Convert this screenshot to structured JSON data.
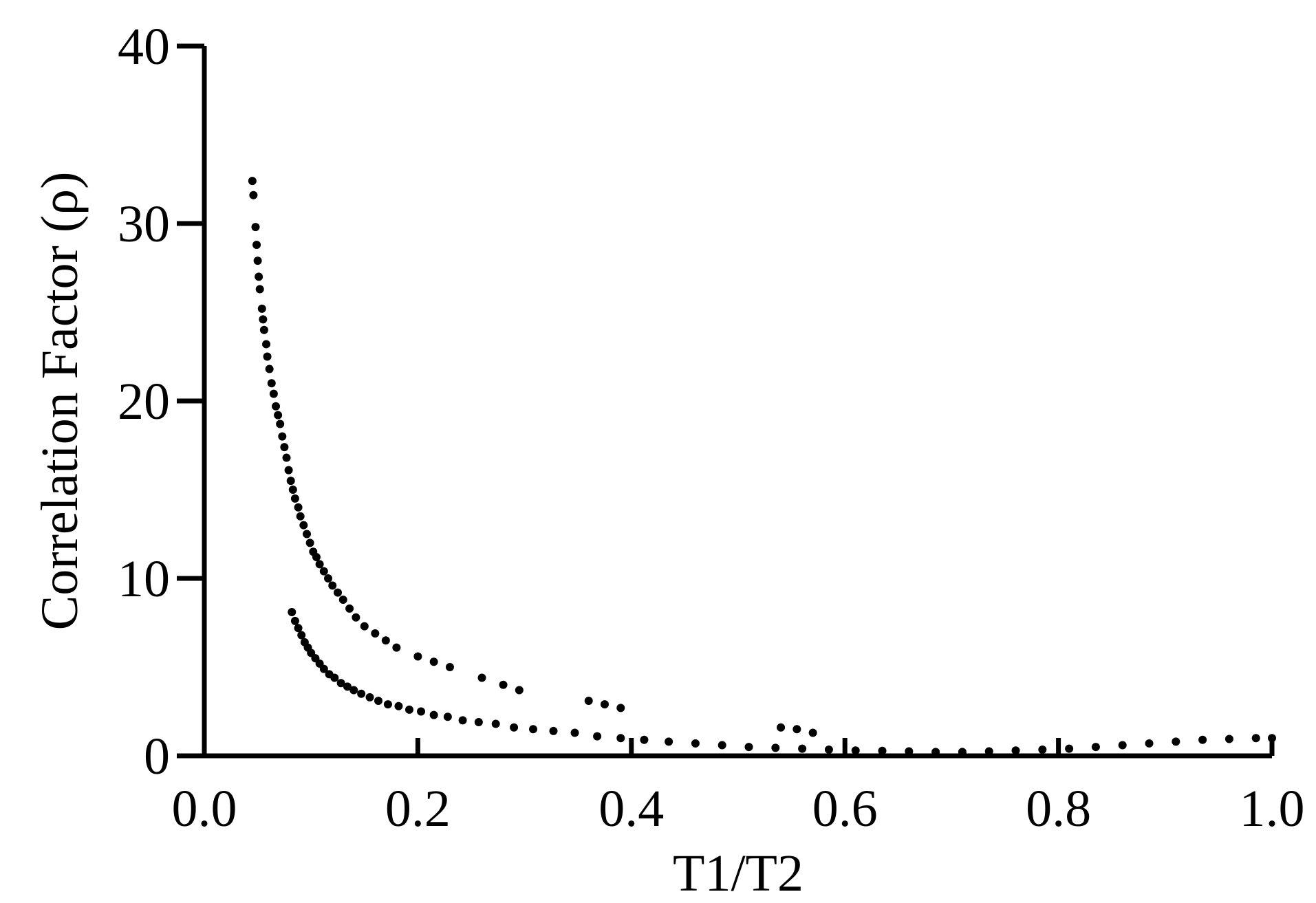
{
  "chart_data": {
    "type": "scatter",
    "title": "",
    "xlabel": "T1/T2",
    "ylabel": "Correlation Factor (ρ)",
    "xlim": [
      0.0,
      1.0
    ],
    "ylim": [
      0,
      40
    ],
    "x_ticks": [
      "0.0",
      "0.2",
      "0.4",
      "0.6",
      "0.8",
      "1.0"
    ],
    "y_ticks": [
      "0",
      "10",
      "20",
      "30",
      "40"
    ],
    "grid": false,
    "legend": "none",
    "marker_color": "#000000",
    "series": [
      {
        "values": [
          [
            0.045,
            32.4
          ],
          [
            0.046,
            31.6
          ],
          [
            0.048,
            29.8
          ],
          [
            0.049,
            28.8
          ],
          [
            0.05,
            27.9
          ],
          [
            0.051,
            27.0
          ],
          [
            0.052,
            26.3
          ],
          [
            0.054,
            25.2
          ],
          [
            0.055,
            24.6
          ],
          [
            0.056,
            24.0
          ],
          [
            0.058,
            23.2
          ],
          [
            0.059,
            22.5
          ],
          [
            0.061,
            21.8
          ],
          [
            0.063,
            21.0
          ],
          [
            0.065,
            20.4
          ],
          [
            0.067,
            19.7
          ],
          [
            0.069,
            19.2
          ],
          [
            0.071,
            18.7
          ],
          [
            0.073,
            18.0
          ],
          [
            0.075,
            17.4
          ],
          [
            0.077,
            16.8
          ],
          [
            0.079,
            16.1
          ],
          [
            0.081,
            15.5
          ],
          [
            0.083,
            15.0
          ],
          [
            0.085,
            14.5
          ],
          [
            0.088,
            14.0
          ],
          [
            0.09,
            13.5
          ],
          [
            0.093,
            13.0
          ],
          [
            0.096,
            12.5
          ],
          [
            0.099,
            12.0
          ],
          [
            0.102,
            11.5
          ],
          [
            0.105,
            11.2
          ],
          [
            0.108,
            10.8
          ],
          [
            0.112,
            10.4
          ],
          [
            0.116,
            10.0
          ],
          [
            0.12,
            9.6
          ],
          [
            0.125,
            9.2
          ],
          [
            0.13,
            8.8
          ],
          [
            0.136,
            8.3
          ],
          [
            0.142,
            7.8
          ],
          [
            0.15,
            7.3
          ],
          [
            0.16,
            6.9
          ],
          [
            0.17,
            6.5
          ],
          [
            0.18,
            6.1
          ],
          [
            0.2,
            5.6
          ],
          [
            0.215,
            5.3
          ],
          [
            0.23,
            5.0
          ],
          [
            0.26,
            4.4
          ],
          [
            0.28,
            4.0
          ],
          [
            0.295,
            3.7
          ],
          [
            0.36,
            3.1
          ],
          [
            0.375,
            2.9
          ],
          [
            0.39,
            2.7
          ],
          [
            0.54,
            1.6
          ],
          [
            0.555,
            1.5
          ],
          [
            0.57,
            1.3
          ]
        ]
      },
      {
        "values": [
          [
            0.082,
            8.1
          ],
          [
            0.085,
            7.6
          ],
          [
            0.088,
            7.2
          ],
          [
            0.091,
            6.8
          ],
          [
            0.094,
            6.4
          ],
          [
            0.097,
            6.1
          ],
          [
            0.1,
            5.8
          ],
          [
            0.104,
            5.5
          ],
          [
            0.108,
            5.2
          ],
          [
            0.112,
            4.9
          ],
          [
            0.117,
            4.6
          ],
          [
            0.122,
            4.4
          ],
          [
            0.128,
            4.1
          ],
          [
            0.134,
            3.9
          ],
          [
            0.14,
            3.7
          ],
          [
            0.147,
            3.5
          ],
          [
            0.155,
            3.3
          ],
          [
            0.163,
            3.1
          ],
          [
            0.172,
            2.9
          ],
          [
            0.182,
            2.8
          ],
          [
            0.192,
            2.6
          ],
          [
            0.203,
            2.5
          ],
          [
            0.215,
            2.3
          ],
          [
            0.228,
            2.2
          ],
          [
            0.242,
            2.0
          ],
          [
            0.257,
            1.9
          ],
          [
            0.273,
            1.8
          ],
          [
            0.29,
            1.6
          ],
          [
            0.308,
            1.5
          ],
          [
            0.327,
            1.4
          ],
          [
            0.347,
            1.3
          ],
          [
            0.368,
            1.1
          ],
          [
            0.39,
            1.0
          ],
          [
            0.412,
            0.9
          ],
          [
            0.435,
            0.8
          ],
          [
            0.46,
            0.7
          ],
          [
            0.485,
            0.6
          ],
          [
            0.51,
            0.5
          ],
          [
            0.535,
            0.45
          ],
          [
            0.56,
            0.4
          ],
          [
            0.585,
            0.35
          ],
          [
            0.61,
            0.3
          ],
          [
            0.635,
            0.28
          ],
          [
            0.66,
            0.25
          ],
          [
            0.685,
            0.22
          ],
          [
            0.71,
            0.22
          ],
          [
            0.735,
            0.25
          ],
          [
            0.76,
            0.3
          ],
          [
            0.785,
            0.35
          ],
          [
            0.81,
            0.4
          ],
          [
            0.835,
            0.5
          ],
          [
            0.86,
            0.6
          ],
          [
            0.885,
            0.7
          ],
          [
            0.91,
            0.8
          ],
          [
            0.935,
            0.9
          ],
          [
            0.96,
            0.95
          ],
          [
            0.985,
            1.0
          ],
          [
            1.0,
            1.0
          ]
        ]
      }
    ]
  }
}
